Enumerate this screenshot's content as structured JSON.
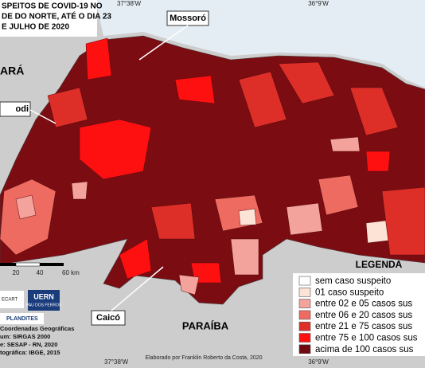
{
  "header": {
    "title_lines": [
      "SPEITOS DE COVID-19 NO",
      "DE DO NORTE, ATÉ O DIA 23",
      "E JULHO DE 2020"
    ]
  },
  "coordinates": {
    "top_left": "37°38'W",
    "top_right": "36°9'W",
    "bottom_left": "37°38'W",
    "bottom_right": "36°9'W"
  },
  "places": {
    "cities": [
      "Mossoró",
      "odi",
      "Caicó"
    ],
    "states": [
      "ARÁ",
      "PARAÍBA"
    ]
  },
  "scale": [
    "20",
    "40",
    "60 km"
  ],
  "legend": {
    "title": "LEGENDA",
    "items": [
      {
        "label": "sem caso suspeito",
        "color": "#ffffff"
      },
      {
        "label": "01 caso suspeito",
        "color": "#fde3d6"
      },
      {
        "label": "entre 02 e 05 casos sus",
        "color": "#f4a39c"
      },
      {
        "label": "entre 06 e 20 casos sus",
        "color": "#ee6b62"
      },
      {
        "label": "entre 21 e 75 casos sus",
        "color": "#dd2f28"
      },
      {
        "label": "entre 75 e 100 casos sus",
        "color": "#ff1010"
      },
      {
        "label": "acima de 100 casos sus",
        "color": "#6e0a10"
      }
    ]
  },
  "logos": [
    "ECART",
    "UERN",
    "PAU DOS FERROS",
    "PLANDITES"
  ],
  "credits": [
    "Coordenadas Geográficas",
    "um: SIRGAS 2000",
    "e: SESAP - RN, 2020",
    "tográfica: IBGE, 2015"
  ],
  "author": "Elaborado por Franklin Roberto da Costa, 2020"
}
